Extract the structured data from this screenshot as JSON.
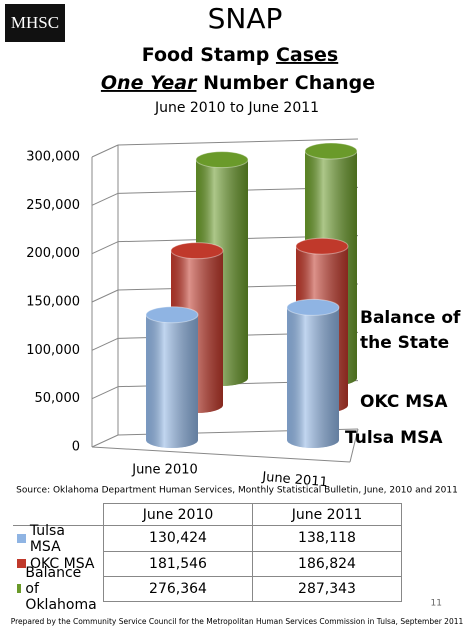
{
  "logo": "MHSC",
  "chart_data": {
    "type": "bar",
    "title": "SNAP",
    "heading": {
      "line1": [
        "Food Stamp",
        "Cases"
      ],
      "line2": [
        "One Year",
        "Number Change"
      ]
    },
    "subtitle": "June 2010 to June 2011",
    "categories": [
      "June 2010",
      "June 2011"
    ],
    "series": [
      {
        "name": "Tulsa MSA",
        "color": "#8fb4e3",
        "values": [
          130424,
          138118
        ],
        "value_labels": [
          "130,424",
          "138,118"
        ]
      },
      {
        "name": "OKC MSA",
        "color": "#c0392b",
        "values": [
          181546,
          186824
        ],
        "value_labels": [
          "181,546",
          "186,824"
        ]
      },
      {
        "name": "Balance of Oklahoma",
        "color": "#6a9a2a",
        "values": [
          276364,
          287343
        ],
        "value_labels": [
          "276,364",
          "287,343"
        ]
      }
    ],
    "series_labels": [
      [
        "Tulsa MSA"
      ],
      [
        "OKC MSA"
      ],
      [
        "Balance of",
        "the State"
      ]
    ],
    "ylim": [
      0,
      300000
    ],
    "yticks": [
      0,
      {
        "value": 50000,
        "label": "50,000"
      },
      {
        "value": 100000,
        "label": "100,000"
      },
      {
        "value": 150000,
        "label": "150,000"
      },
      {
        "value": 200000,
        "label": "200,000"
      },
      {
        "value": 250000,
        "label": "250,000"
      },
      {
        "value": 300000,
        "label": "300,000"
      }
    ],
    "grid": true,
    "source": "Source: Oklahoma Department Human Services, Monthly Statistical Bulletin, June, 2010 and 2011"
  },
  "page_number": "11",
  "footer": "Prepared by the Community Service Council for the Metropolitan Human Services Commission in Tulsa, September 2011"
}
